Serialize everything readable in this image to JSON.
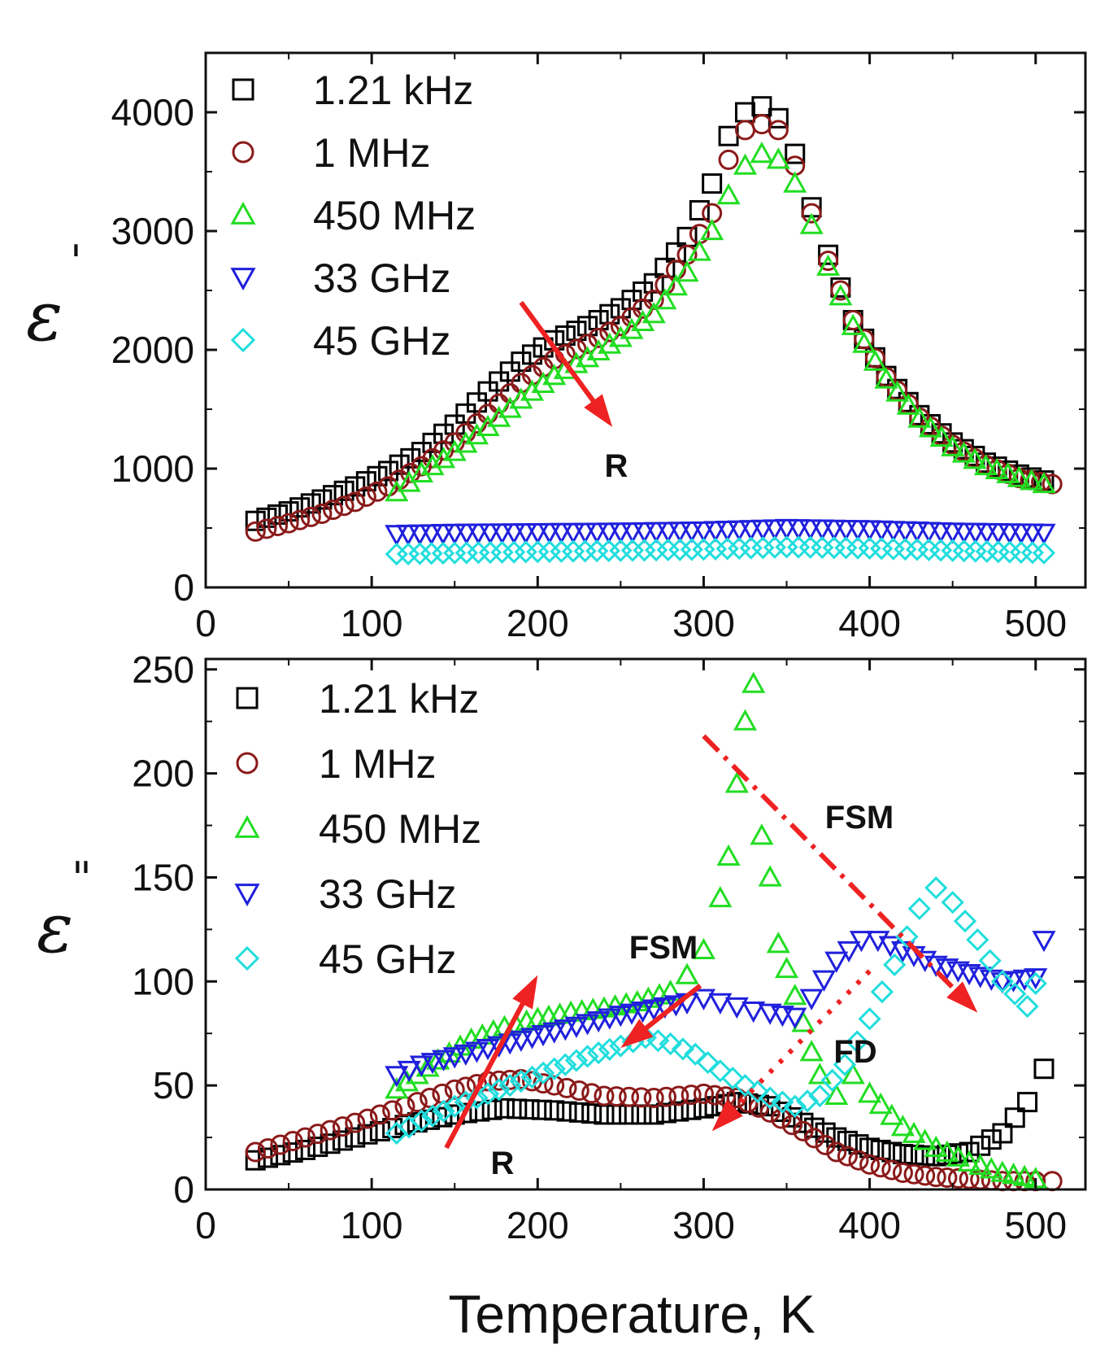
{
  "chart_data": [
    {
      "type": "scatter",
      "panel": "top",
      "ylabel_symbol": "ε",
      "ylabel_sup": "'",
      "xlim": [
        0,
        530
      ],
      "ylim": [
        0,
        4500
      ],
      "xticks": [
        0,
        100,
        200,
        300,
        400,
        500
      ],
      "yticks": [
        0,
        1000,
        2000,
        3000,
        4000
      ],
      "legend_position": "top-left",
      "series": [
        {
          "name": "1.21 kHz",
          "marker": "square",
          "color": "#000000",
          "x": [
            30,
            50,
            70,
            90,
            110,
            130,
            150,
            170,
            190,
            210,
            230,
            250,
            270,
            290,
            305,
            315,
            325,
            335,
            345,
            355,
            365,
            375,
            390,
            410,
            430,
            450,
            470,
            490,
            505
          ],
          "y": [
            560,
            640,
            740,
            850,
            980,
            1140,
            1370,
            1650,
            1900,
            2080,
            2200,
            2350,
            2560,
            2950,
            3400,
            3800,
            4000,
            4050,
            3950,
            3650,
            3200,
            2800,
            2250,
            1780,
            1450,
            1220,
            1050,
            950,
            900
          ]
        },
        {
          "name": "1 MHz",
          "marker": "circle",
          "color": "#8b1a1a",
          "x": [
            30,
            50,
            70,
            90,
            110,
            130,
            150,
            170,
            190,
            210,
            230,
            250,
            270,
            290,
            305,
            315,
            325,
            335,
            345,
            355,
            365,
            375,
            390,
            410,
            430,
            450,
            470,
            490,
            510
          ],
          "y": [
            470,
            540,
            620,
            720,
            850,
            1020,
            1220,
            1460,
            1720,
            1920,
            2050,
            2200,
            2420,
            2800,
            3150,
            3600,
            3850,
            3900,
            3850,
            3550,
            3150,
            2750,
            2250,
            1770,
            1430,
            1200,
            1030,
            920,
            870
          ]
        },
        {
          "name": "450 MHz",
          "marker": "triangle-up",
          "color": "#22dd22",
          "x": [
            115,
            130,
            150,
            170,
            190,
            210,
            230,
            250,
            270,
            290,
            305,
            315,
            325,
            335,
            345,
            355,
            365,
            375,
            390,
            410,
            430,
            450,
            470,
            490,
            505
          ],
          "y": [
            800,
            960,
            1140,
            1350,
            1580,
            1780,
            1930,
            2100,
            2300,
            2650,
            3000,
            3300,
            3550,
            3650,
            3600,
            3400,
            3050,
            2700,
            2200,
            1750,
            1420,
            1180,
            1020,
            920,
            870
          ]
        },
        {
          "name": "33 GHz",
          "marker": "triangle-down",
          "color": "#2020dd",
          "x": [
            115,
            150,
            200,
            250,
            300,
            350,
            400,
            450,
            505
          ],
          "y": [
            450,
            460,
            465,
            470,
            480,
            500,
            490,
            470,
            460
          ]
        },
        {
          "name": "45 GHz",
          "marker": "diamond",
          "color": "#22dddd",
          "x": [
            115,
            150,
            200,
            250,
            300,
            350,
            400,
            450,
            505
          ],
          "y": [
            280,
            290,
            300,
            310,
            320,
            340,
            330,
            310,
            290
          ]
        }
      ],
      "annotations": [
        {
          "text": "R",
          "kind": "arrow",
          "color": "#ee2222",
          "x_start": 190,
          "y_start": 2400,
          "x_end": 245,
          "y_end": 1350
        }
      ]
    },
    {
      "type": "scatter",
      "panel": "bottom",
      "ylabel_symbol": "ε",
      "ylabel_sup": "\"",
      "xlabel": "Temperature, K",
      "xlim": [
        0,
        530
      ],
      "ylim": [
        0,
        255
      ],
      "xticks": [
        0,
        100,
        200,
        300,
        400,
        500
      ],
      "yticks": [
        0,
        50,
        100,
        150,
        200,
        250
      ],
      "legend_position": "top-left",
      "series": [
        {
          "name": "1.21 kHz",
          "marker": "square",
          "color": "#000000",
          "x": [
            30,
            60,
            90,
            120,
            150,
            180,
            210,
            240,
            270,
            300,
            320,
            340,
            360,
            380,
            400,
            420,
            440,
            460,
            480,
            495,
            505
          ],
          "y": [
            14,
            19,
            25,
            31,
            36,
            39,
            38,
            36,
            36,
            39,
            42,
            40,
            32,
            25,
            20,
            17,
            16,
            18,
            27,
            42,
            58
          ]
        },
        {
          "name": "1 MHz",
          "marker": "circle",
          "color": "#8b1a1a",
          "x": [
            30,
            60,
            90,
            120,
            150,
            170,
            190,
            210,
            240,
            270,
            300,
            320,
            340,
            360,
            380,
            400,
            420,
            440,
            460,
            480,
            500,
            510
          ],
          "y": [
            18,
            25,
            32,
            40,
            48,
            52,
            53,
            50,
            45,
            44,
            46,
            44,
            37,
            28,
            18,
            12,
            8,
            6,
            5,
            4,
            4,
            4
          ]
        },
        {
          "name": "450 MHz",
          "marker": "triangle-up",
          "color": "#22dd22",
          "x": [
            115,
            140,
            160,
            180,
            200,
            220,
            240,
            260,
            280,
            290,
            300,
            310,
            315,
            320,
            325,
            330,
            335,
            340,
            345,
            350,
            355,
            360,
            365,
            370,
            380,
            390,
            400,
            420,
            440,
            460,
            480,
            500
          ],
          "y": [
            48,
            62,
            72,
            78,
            82,
            85,
            87,
            90,
            95,
            103,
            115,
            140,
            160,
            195,
            225,
            243,
            170,
            150,
            118,
            106,
            93,
            80,
            66,
            55,
            45,
            55,
            46,
            30,
            20,
            13,
            8,
            5
          ]
        },
        {
          "name": "33 GHz",
          "marker": "triangle-down",
          "color": "#2020dd",
          "x": [
            115,
            130,
            150,
            170,
            190,
            210,
            230,
            250,
            270,
            290,
            300,
            310,
            320,
            330,
            340,
            355,
            365,
            380,
            395,
            405,
            420,
            440,
            460,
            480,
            500,
            505
          ],
          "y": [
            55,
            60,
            64,
            68,
            72,
            76,
            80,
            84,
            87,
            90,
            92,
            90,
            88,
            86,
            85,
            83,
            92,
            110,
            120,
            120,
            115,
            108,
            104,
            100,
            102,
            120
          ]
        },
        {
          "name": "45 GHz",
          "marker": "diamond",
          "color": "#22dddd",
          "x": [
            115,
            130,
            150,
            170,
            190,
            210,
            230,
            250,
            265,
            280,
            295,
            310,
            325,
            340,
            355,
            370,
            385,
            400,
            415,
            430,
            440,
            450,
            465,
            480,
            495,
            500
          ],
          "y": [
            27,
            33,
            40,
            46,
            52,
            58,
            64,
            69,
            73,
            70,
            65,
            57,
            50,
            44,
            40,
            45,
            60,
            82,
            108,
            135,
            145,
            138,
            120,
            100,
            88,
            99
          ]
        }
      ],
      "annotations": [
        {
          "text": "R",
          "kind": "arrow",
          "color": "#ee2222",
          "x_start": 145,
          "y_start": 20,
          "x_end": 200,
          "y_end": 103
        },
        {
          "text": "FSM",
          "kind": "arrow",
          "color": "#ee2222",
          "x_start": 298,
          "y_start": 98,
          "x_end": 250,
          "y_end": 68
        },
        {
          "text": "FSM",
          "kind": "dash-dot-arrow",
          "color": "#ee2222",
          "x_start": 300,
          "y_start": 218,
          "x_end": 465,
          "y_end": 85
        },
        {
          "text": "FD",
          "kind": "dotted-arrow",
          "color": "#ee2222",
          "x_start": 400,
          "y_start": 105,
          "x_end": 305,
          "y_end": 28
        }
      ]
    }
  ]
}
